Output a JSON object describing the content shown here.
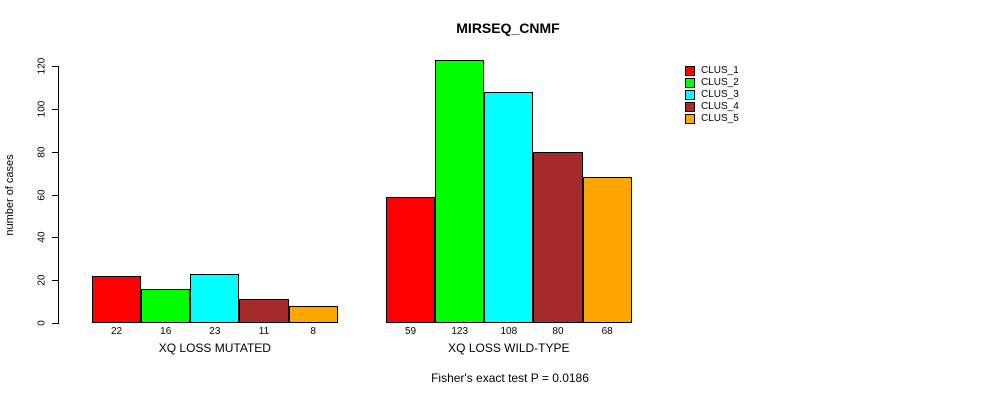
{
  "chart_data": {
    "type": "bar",
    "title": "MIRSEQ_CNMF",
    "ylabel": "number of cases",
    "xlabel": "",
    "annotation": "Fisher's exact test P = 0.0186",
    "legend_position": "right",
    "grid": false,
    "yticks": [
      0,
      20,
      40,
      60,
      80,
      100,
      120
    ],
    "ylim": [
      0,
      129
    ],
    "categories": [
      "XQ LOSS MUTATED",
      "XQ LOSS WILD-TYPE"
    ],
    "bar_value_labels": true,
    "series": [
      {
        "name": "CLUS_1",
        "color": "#FF0000",
        "values": [
          22,
          59
        ]
      },
      {
        "name": "CLUS_2",
        "color": "#00FF00",
        "values": [
          16,
          123
        ]
      },
      {
        "name": "CLUS_3",
        "color": "#00FFFF",
        "values": [
          23,
          108
        ]
      },
      {
        "name": "CLUS_4",
        "color": "#A52A2A",
        "values": [
          11,
          80
        ]
      },
      {
        "name": "CLUS_5",
        "color": "#FFA500",
        "values": [
          8,
          68
        ]
      }
    ]
  }
}
